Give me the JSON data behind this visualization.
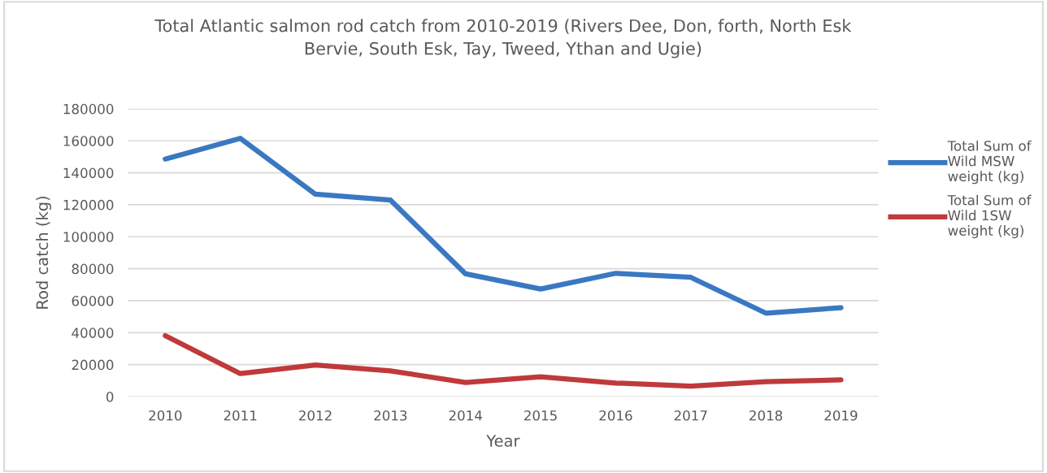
{
  "chart_data": {
    "type": "line",
    "title": "Total Atlantic salmon rod catch from 2010-2019 (Rivers Dee, Don, forth, North Esk Bervie, South Esk, Tay, Tweed, Ythan and Ugie)",
    "xlabel": "Year",
    "ylabel": "Rod catch (kg)",
    "categories": [
      "2010",
      "2011",
      "2012",
      "2013",
      "2014",
      "2015",
      "2016",
      "2017",
      "2018",
      "2019"
    ],
    "series": [
      {
        "name": "Total Sum of Wild MSW weight (kg)",
        "color": "#3a78c2",
        "values": [
          148600,
          161500,
          126600,
          122900,
          76800,
          67300,
          77100,
          74600,
          52200,
          55600
        ]
      },
      {
        "name": "Total Sum of Wild 1SW weight (kg)",
        "color": "#c0393b",
        "values": [
          38100,
          14400,
          19800,
          16100,
          8800,
          12400,
          8500,
          6600,
          9300,
          10500
        ]
      }
    ],
    "ylim": [
      0,
      180000
    ],
    "yticks": [
      0,
      20000,
      40000,
      60000,
      80000,
      100000,
      120000,
      140000,
      160000,
      180000
    ],
    "grid": "y",
    "legend": "right",
    "marker": "none",
    "line_style": "solid"
  }
}
